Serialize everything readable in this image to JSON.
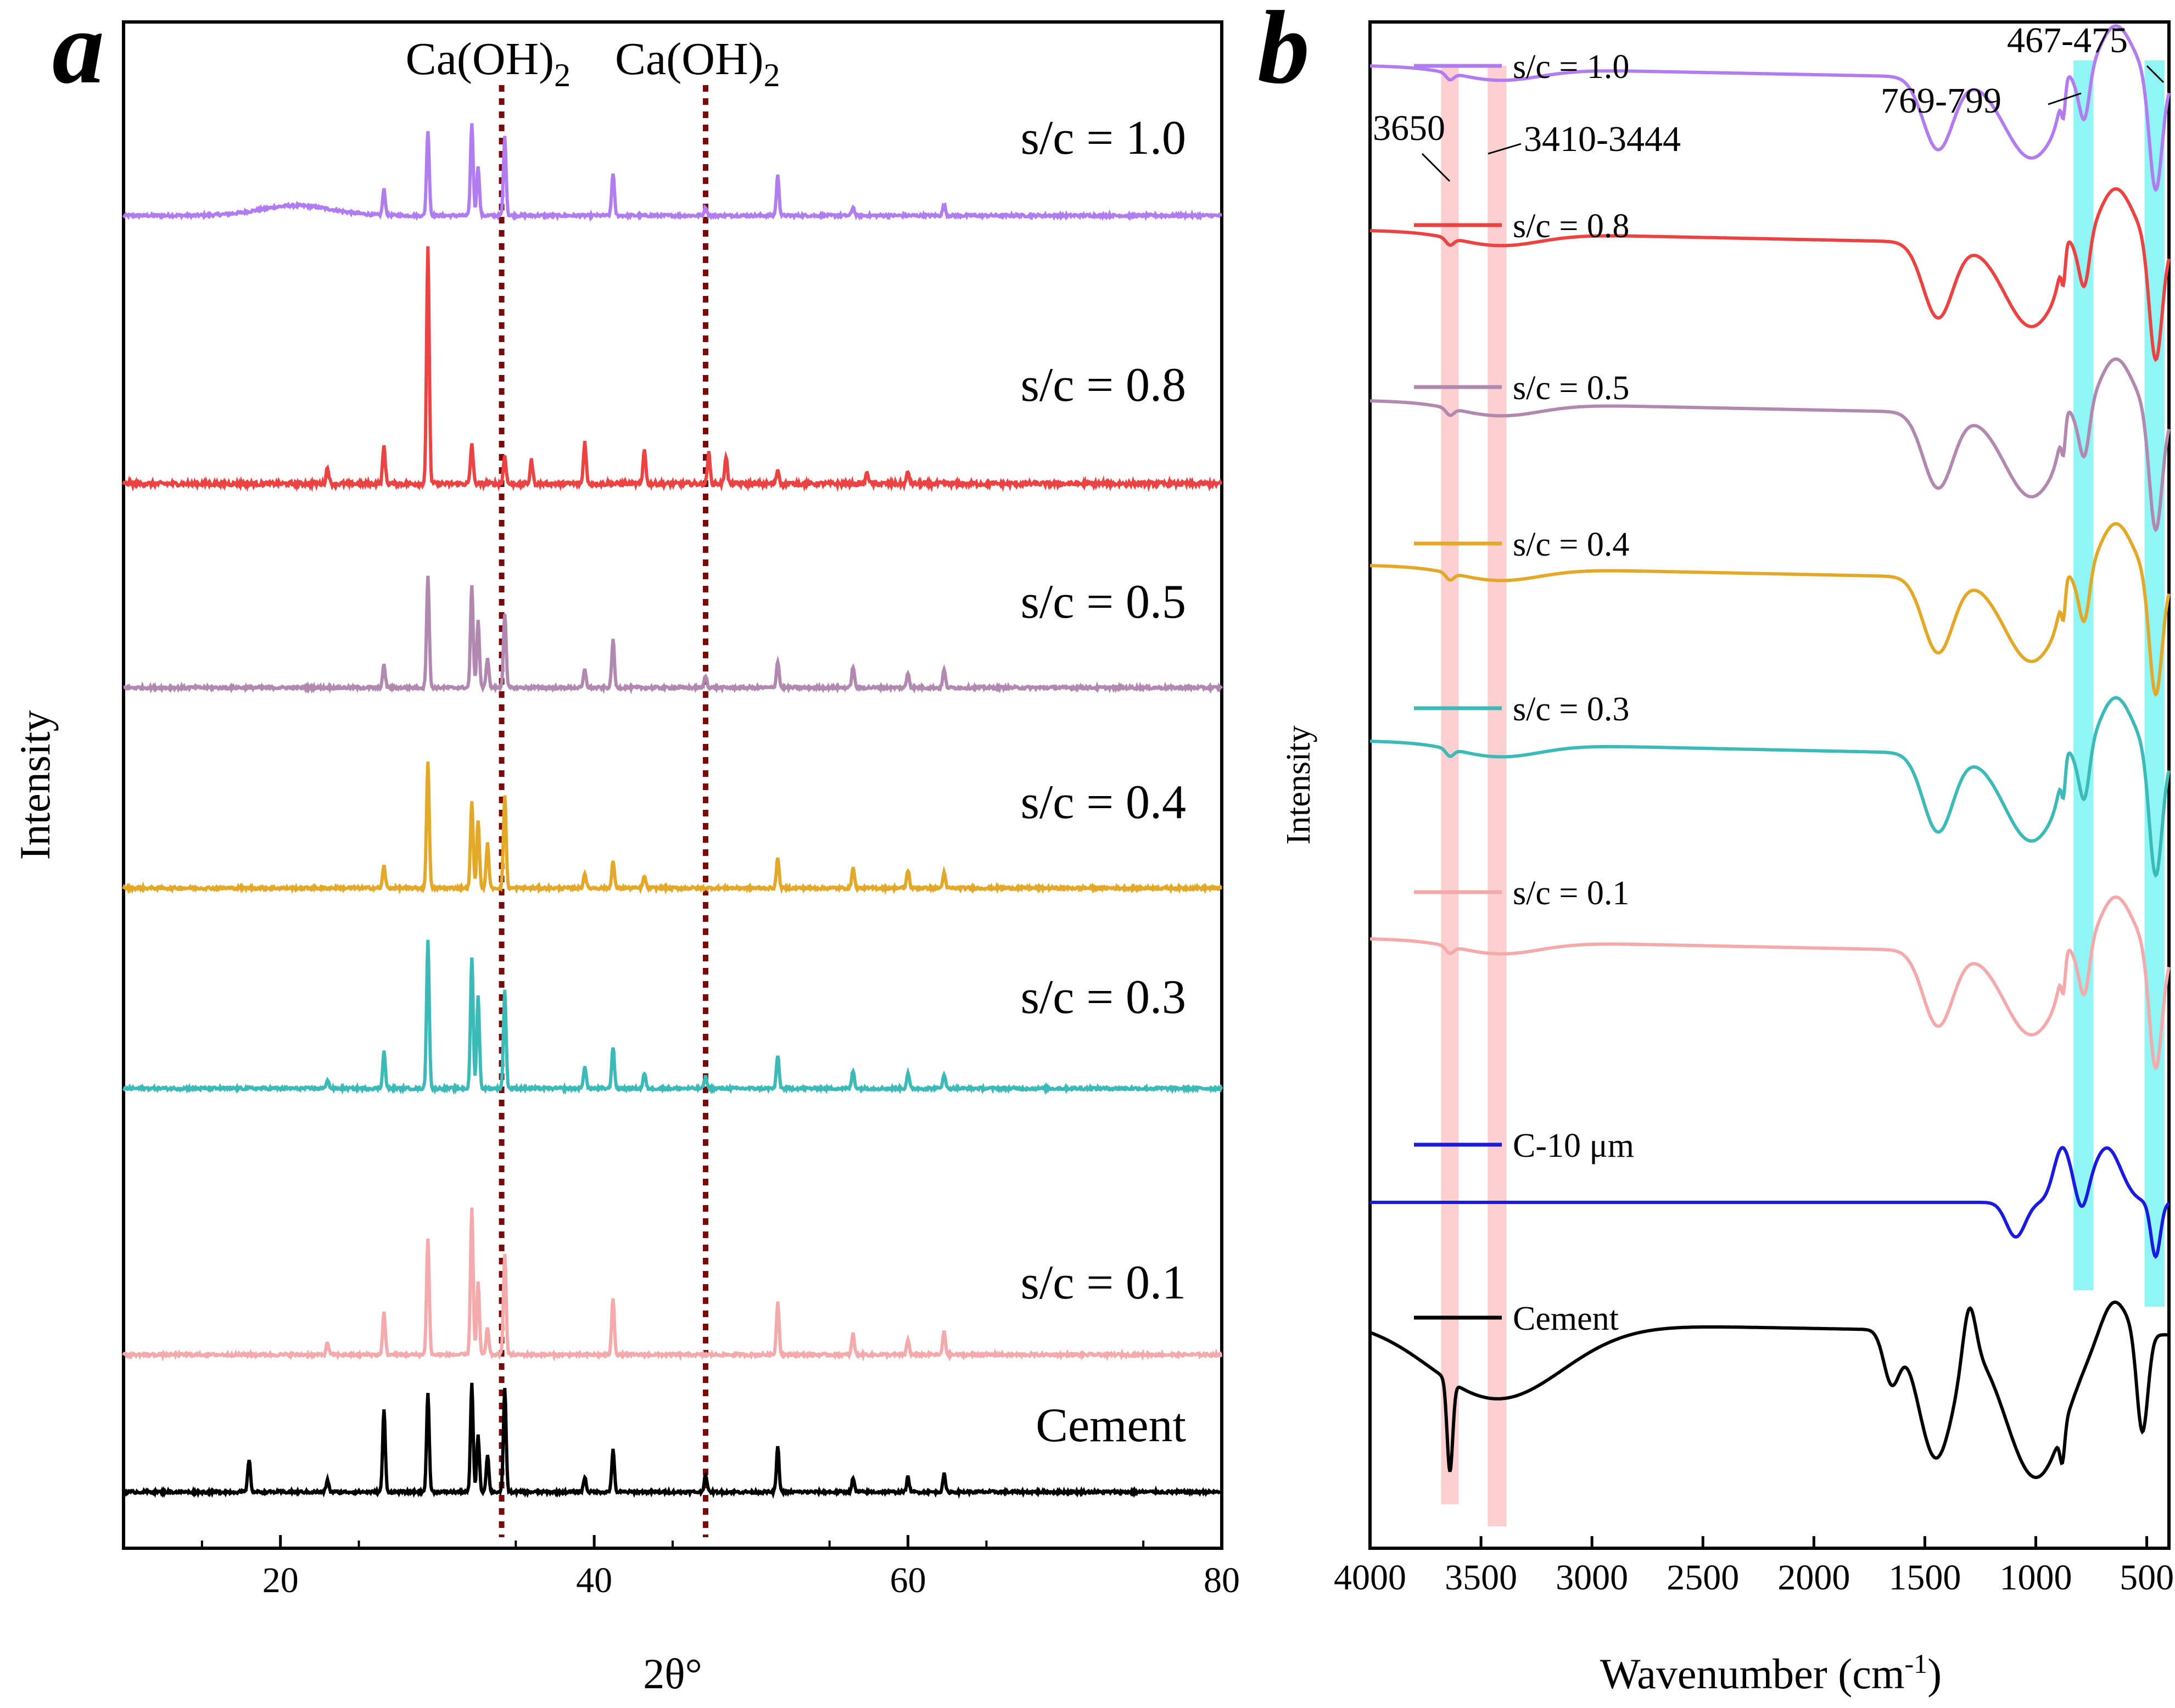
{
  "chart_data": [
    {
      "panel": "a",
      "type": "line",
      "xlabel": "2θ°",
      "ylabel": "Intensity",
      "xlim": [
        10,
        80
      ],
      "xticks": [
        20,
        40,
        60,
        80
      ],
      "reference_lines": [
        {
          "label": "Ca(OH)",
          "sub": "2",
          "x": 34.1
        },
        {
          "label": "Ca(OH)",
          "sub": "2",
          "x": 47.1
        }
      ],
      "base_peaks": [
        {
          "x": 18.0,
          "h": 0.22
        },
        {
          "x": 23.0,
          "h": 0.08
        },
        {
          "x": 26.6,
          "h": 0.55
        },
        {
          "x": 29.4,
          "h": 0.66
        },
        {
          "x": 32.2,
          "h": 0.72
        },
        {
          "x": 32.6,
          "h": 0.38
        },
        {
          "x": 33.2,
          "h": 0.25
        },
        {
          "x": 34.3,
          "h": 0.7
        },
        {
          "x": 39.4,
          "h": 0.1
        },
        {
          "x": 41.2,
          "h": 0.28
        },
        {
          "x": 47.1,
          "h": 0.12
        },
        {
          "x": 51.7,
          "h": 0.3
        },
        {
          "x": 56.5,
          "h": 0.09
        },
        {
          "x": 60.0,
          "h": 0.1
        },
        {
          "x": 62.3,
          "h": 0.12
        }
      ],
      "series": [
        {
          "name": "s/c = 1.0",
          "color": "#b07cf0",
          "scale": 0.6,
          "hump": true,
          "peaks": [
            {
              "x": 26.6,
              "h": 0.18
            },
            {
              "x": 29.4,
              "h": 0.6
            },
            {
              "x": 32.2,
              "h": 0.65
            },
            {
              "x": 32.6,
              "h": 0.35
            },
            {
              "x": 34.3,
              "h": 0.55
            },
            {
              "x": 41.2,
              "h": 0.3
            },
            {
              "x": 51.7,
              "h": 0.28
            },
            {
              "x": 47.1,
              "h": 0.06
            },
            {
              "x": 56.5,
              "h": 0.06
            },
            {
              "x": 62.3,
              "h": 0.08
            }
          ]
        },
        {
          "name": "s/c = 0.8",
          "color": "#ec4242",
          "scale": 1.0,
          "peaks": [
            {
              "x": 23.0,
              "h": 0.07
            },
            {
              "x": 26.6,
              "h": 0.16
            },
            {
              "x": 29.4,
              "h": 1.0
            },
            {
              "x": 32.2,
              "h": 0.17
            },
            {
              "x": 34.3,
              "h": 0.12
            },
            {
              "x": 36.0,
              "h": 0.1
            },
            {
              "x": 39.4,
              "h": 0.18
            },
            {
              "x": 43.2,
              "h": 0.15
            },
            {
              "x": 47.3,
              "h": 0.13
            },
            {
              "x": 48.4,
              "h": 0.12
            },
            {
              "x": 51.7,
              "h": 0.06
            },
            {
              "x": 57.4,
              "h": 0.05
            },
            {
              "x": 60.0,
              "h": 0.05
            }
          ]
        },
        {
          "name": "s/c = 0.5",
          "color": "#b088b0",
          "scale": 0.8,
          "peaks": [
            {
              "x": 26.6,
              "h": 0.15
            },
            {
              "x": 29.4,
              "h": 0.75
            },
            {
              "x": 32.2,
              "h": 0.68
            },
            {
              "x": 32.6,
              "h": 0.45
            },
            {
              "x": 33.2,
              "h": 0.2
            },
            {
              "x": 34.3,
              "h": 0.5
            },
            {
              "x": 39.4,
              "h": 0.12
            },
            {
              "x": 41.2,
              "h": 0.32
            },
            {
              "x": 47.1,
              "h": 0.08
            },
            {
              "x": 51.7,
              "h": 0.18
            },
            {
              "x": 56.5,
              "h": 0.14
            },
            {
              "x": 60.0,
              "h": 0.1
            },
            {
              "x": 62.3,
              "h": 0.12
            }
          ]
        },
        {
          "name": "s/c = 0.4",
          "color": "#e4a828",
          "scale": 0.8,
          "peaks": [
            {
              "x": 26.6,
              "h": 0.15
            },
            {
              "x": 29.4,
              "h": 0.85
            },
            {
              "x": 32.2,
              "h": 0.58
            },
            {
              "x": 32.6,
              "h": 0.45
            },
            {
              "x": 33.2,
              "h": 0.3
            },
            {
              "x": 34.3,
              "h": 0.62
            },
            {
              "x": 39.4,
              "h": 0.1
            },
            {
              "x": 41.2,
              "h": 0.18
            },
            {
              "x": 43.2,
              "h": 0.08
            },
            {
              "x": 51.7,
              "h": 0.2
            },
            {
              "x": 56.5,
              "h": 0.14
            },
            {
              "x": 60.0,
              "h": 0.12
            },
            {
              "x": 62.3,
              "h": 0.1
            }
          ]
        },
        {
          "name": "s/c = 0.3",
          "color": "#3cbab8",
          "scale": 0.8,
          "peaks": [
            {
              "x": 23.0,
              "h": 0.06
            },
            {
              "x": 26.6,
              "h": 0.25
            },
            {
              "x": 29.4,
              "h": 1.0
            },
            {
              "x": 32.2,
              "h": 0.88
            },
            {
              "x": 32.6,
              "h": 0.62
            },
            {
              "x": 34.3,
              "h": 0.65
            },
            {
              "x": 39.4,
              "h": 0.15
            },
            {
              "x": 41.2,
              "h": 0.28
            },
            {
              "x": 43.2,
              "h": 0.1
            },
            {
              "x": 47.1,
              "h": 0.08
            },
            {
              "x": 51.7,
              "h": 0.22
            },
            {
              "x": 56.5,
              "h": 0.12
            },
            {
              "x": 60.0,
              "h": 0.1
            },
            {
              "x": 62.3,
              "h": 0.1
            }
          ]
        },
        {
          "name": "s/c = 0.1",
          "color": "#f4aaaa",
          "scale": 0.8,
          "peaks": [
            {
              "x": 26.6,
              "h": 0.28
            },
            {
              "x": 29.4,
              "h": 0.78
            },
            {
              "x": 32.2,
              "h": 0.98
            },
            {
              "x": 32.6,
              "h": 0.48
            },
            {
              "x": 33.2,
              "h": 0.18
            },
            {
              "x": 34.3,
              "h": 0.68
            },
            {
              "x": 41.2,
              "h": 0.38
            },
            {
              "x": 51.7,
              "h": 0.35
            },
            {
              "x": 56.5,
              "h": 0.14
            },
            {
              "x": 60.0,
              "h": 0.1
            },
            {
              "x": 62.3,
              "h": 0.16
            },
            {
              "x": 23.0,
              "h": 0.08
            }
          ]
        },
        {
          "name": "Cement",
          "color": "#000000",
          "scale": 0.8,
          "peaks": [
            {
              "x": 18.0,
              "h": 0.22
            },
            {
              "x": 23.0,
              "h": 0.08
            },
            {
              "x": 26.6,
              "h": 0.55
            },
            {
              "x": 29.4,
              "h": 0.66
            },
            {
              "x": 32.2,
              "h": 0.72
            },
            {
              "x": 32.6,
              "h": 0.38
            },
            {
              "x": 33.2,
              "h": 0.25
            },
            {
              "x": 34.3,
              "h": 0.7
            },
            {
              "x": 39.4,
              "h": 0.1
            },
            {
              "x": 41.2,
              "h": 0.28
            },
            {
              "x": 47.1,
              "h": 0.12
            },
            {
              "x": 51.7,
              "h": 0.3
            },
            {
              "x": 56.5,
              "h": 0.09
            },
            {
              "x": 60.0,
              "h": 0.1
            },
            {
              "x": 62.3,
              "h": 0.12
            }
          ]
        }
      ]
    },
    {
      "panel": "b",
      "type": "line",
      "xlabel": "Wavenumber (cm",
      "xlabel_sup": "-1",
      "xlabel_end": ")",
      "ylabel": "Intensity",
      "xlim": [
        4000,
        400
      ],
      "xticks": [
        4000,
        3500,
        3000,
        2500,
        2000,
        1500,
        1000,
        500
      ],
      "highlight_bands": [
        {
          "range": [
            3680,
            3600
          ],
          "color": "#fbc8c8",
          "label": "3650"
        },
        {
          "range": [
            3470,
            3385
          ],
          "color": "#fbc8c8",
          "label": "3410-3444"
        },
        {
          "range": [
            830,
            740
          ],
          "color": "#7ff3f3",
          "label": "769-799"
        },
        {
          "range": [
            510,
            420
          ],
          "color": "#7ff3f3",
          "label": "467-475"
        }
      ],
      "series": [
        {
          "name": "s/c = 1.0",
          "color": "#b07cf0"
        },
        {
          "name": "s/c = 0.8",
          "color": "#ec4242"
        },
        {
          "name": "s/c = 0.5",
          "color": "#b088b0"
        },
        {
          "name": "s/c = 0.4",
          "color": "#e4a828"
        },
        {
          "name": "s/c = 0.3",
          "color": "#3cbab8"
        },
        {
          "name": "s/c = 0.1",
          "color": "#f4aaaa"
        },
        {
          "name": "C-10 μm",
          "color": "#1a1ae0"
        },
        {
          "name": "Cement",
          "color": "#000000"
        }
      ]
    }
  ]
}
